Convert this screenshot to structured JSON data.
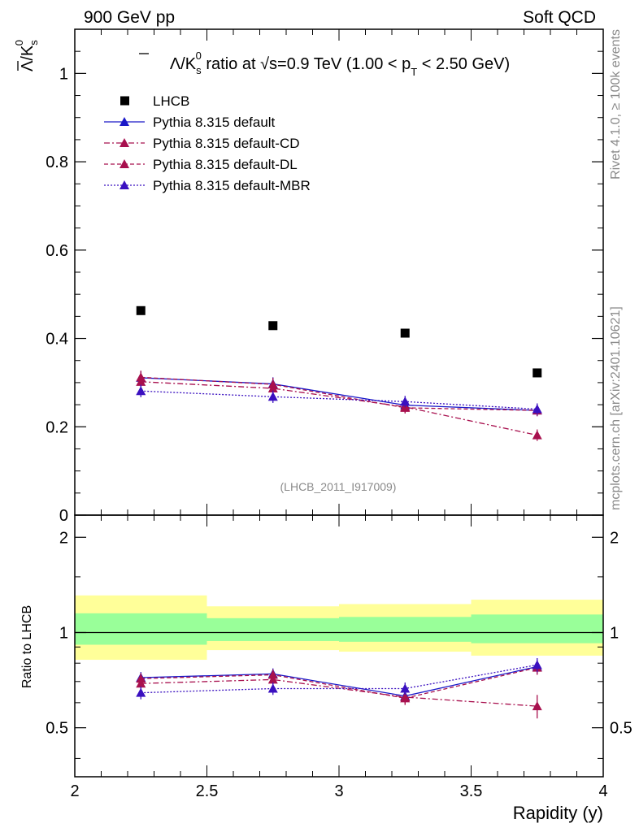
{
  "header": {
    "left": "900 GeV pp",
    "right": "Soft QCD"
  },
  "side_labels": {
    "rivet": "Rivet 4.1.0, ≥ 100k events",
    "mcplots": "mcplots.cern.ch [arXiv:2401.10621]"
  },
  "analysis_id": "(LHCB_2011_I917009)",
  "colors": {
    "data": "#000000",
    "default": "#1a18c8",
    "cd": "#a8104e",
    "dl": "#a8104e",
    "mbr": "#3a10c0",
    "band_inner": "#99ff99",
    "band_outer": "#ffff99"
  },
  "chart_data": [
    {
      "type": "scatter",
      "panel": "main",
      "title": {
        "pre": "Λ/K",
        "k_sup": "0",
        "k_sub": "s",
        "mid": " ratio at √s=0.9 TeV (1.00 < p",
        "pt_sub": "T",
        "post": " < 2.50 GeV)"
      },
      "ylabel": {
        "main": "Λ/K",
        "sup": "0",
        "sub": "s"
      },
      "xlim": [
        2,
        4
      ],
      "ylim": [
        0,
        1.1
      ],
      "yticks": [
        0,
        0.2,
        0.4,
        0.6,
        0.8,
        1
      ],
      "ytick_labels": [
        "0",
        "0.2",
        "0.4",
        "0.6",
        "0.8",
        "1"
      ],
      "x": [
        2.25,
        2.75,
        3.25,
        3.75
      ],
      "series": [
        {
          "key": "data",
          "name": "LHCB",
          "values": [
            0.463,
            0.429,
            0.412,
            0.322
          ],
          "errors": [
            0,
            0,
            0,
            0
          ],
          "marker": "square",
          "line": "none"
        },
        {
          "key": "default",
          "name": "Pythia 8.315 default",
          "values": [
            0.311,
            0.297,
            0.249,
            0.237
          ],
          "errors": [
            0.015,
            0.015,
            0.013,
            0.013
          ],
          "marker": "triangle",
          "line": "solid"
        },
        {
          "key": "cd",
          "name": "Pythia 8.315 default-CD",
          "values": [
            0.302,
            0.287,
            0.245,
            0.181
          ],
          "errors": [
            0.015,
            0.015,
            0.013,
            0.013
          ],
          "marker": "triangle",
          "line": "dashdot"
        },
        {
          "key": "dl",
          "name": "Pythia 8.315 default-DL",
          "values": [
            0.312,
            0.296,
            0.243,
            0.237
          ],
          "errors": [
            0.015,
            0.015,
            0.013,
            0.013
          ],
          "marker": "triangle",
          "line": "dashed"
        },
        {
          "key": "mbr",
          "name": "Pythia 8.315 default-MBR",
          "values": [
            0.281,
            0.268,
            0.257,
            0.24
          ],
          "errors": [
            0.014,
            0.014,
            0.013,
            0.013
          ],
          "marker": "triangle",
          "line": "dotted"
        }
      ]
    },
    {
      "type": "scatter",
      "panel": "ratio",
      "ylabel": "Ratio to LHCB",
      "xlabel": "Rapidity (y)",
      "xlim": [
        2,
        4
      ],
      "ylim": [
        0.35,
        2.35
      ],
      "yscale": "log",
      "yticks": [
        0.5,
        1,
        2
      ],
      "ytick_labels": [
        "0.5",
        "1",
        "2"
      ],
      "xticks": [
        2,
        2.5,
        3,
        3.5,
        4
      ],
      "xtick_labels": [
        "2",
        "2.5",
        "3",
        "3.5",
        "4"
      ],
      "x": [
        2.25,
        2.75,
        3.25,
        3.75
      ],
      "bins": [
        [
          2,
          2.5
        ],
        [
          2.5,
          3
        ],
        [
          3,
          3.5
        ],
        [
          3.5,
          4
        ]
      ],
      "band_inner": [
        [
          0.915,
          1.15
        ],
        [
          0.94,
          1.11
        ],
        [
          0.935,
          1.12
        ],
        [
          0.925,
          1.14
        ]
      ],
      "band_outer": [
        [
          0.82,
          1.31
        ],
        [
          0.88,
          1.21
        ],
        [
          0.87,
          1.23
        ],
        [
          0.845,
          1.27
        ]
      ],
      "series": [
        {
          "key": "default",
          "name": "Pythia 8.315 default",
          "values": [
            0.72,
            0.74,
            0.63,
            0.78
          ],
          "errors": [
            0.03,
            0.03,
            0.03,
            0.04
          ]
        },
        {
          "key": "cd",
          "name": "Pythia 8.315 default-CD",
          "values": [
            0.69,
            0.71,
            0.625,
            0.585
          ],
          "errors": [
            0.03,
            0.03,
            0.03,
            0.05
          ]
        },
        {
          "key": "dl",
          "name": "Pythia 8.315 default-DL",
          "values": [
            0.715,
            0.735,
            0.62,
            0.775
          ],
          "errors": [
            0.03,
            0.03,
            0.03,
            0.04
          ]
        },
        {
          "key": "mbr",
          "name": "Pythia 8.315 default-MBR",
          "values": [
            0.645,
            0.665,
            0.665,
            0.79
          ],
          "errors": [
            0.03,
            0.03,
            0.03,
            0.04
          ]
        }
      ]
    }
  ]
}
